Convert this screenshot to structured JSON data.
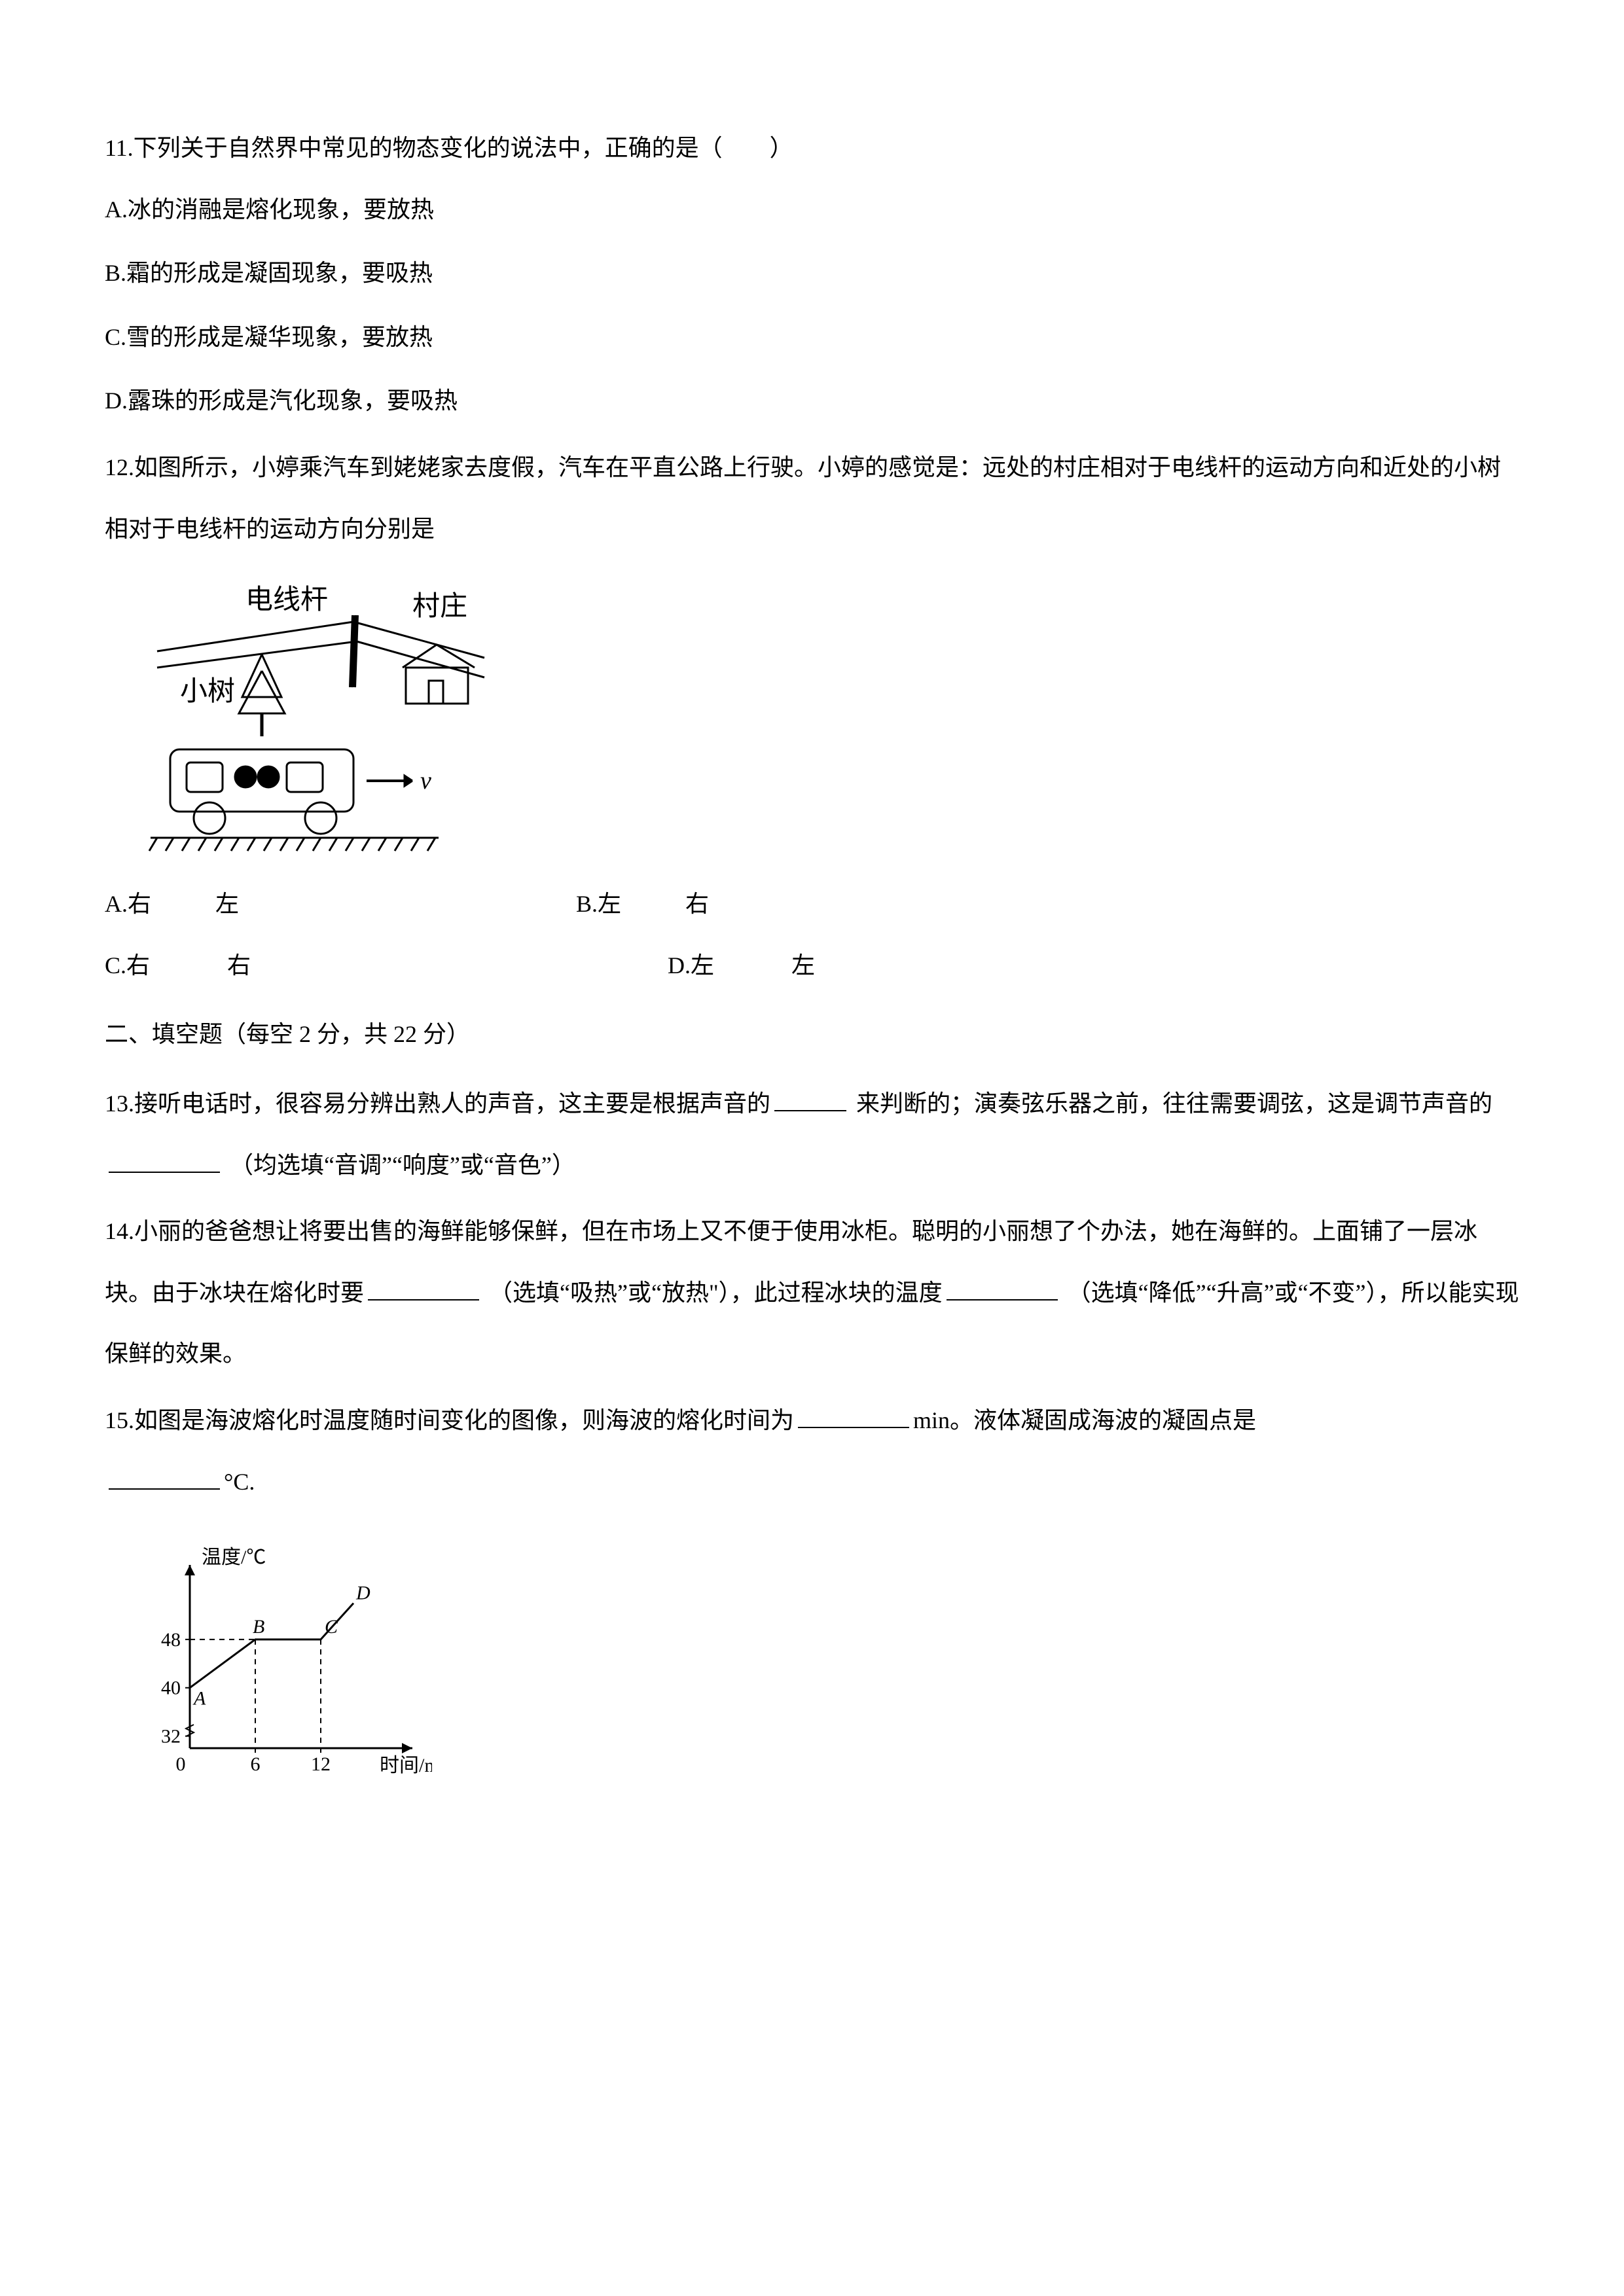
{
  "q11": {
    "stem": "11.下列关于自然界中常见的物态变化的说法中，正确的是（　　）",
    "optA": "A.冰的消融是熔化现象，要放热",
    "optB": "B.霜的形成是凝固现象，要吸热",
    "optC": "C.雪的形成是凝华现象，要放热",
    "optD": "D.露珠的形成是汽化现象，要吸热"
  },
  "q12": {
    "stem": "12.如图所示，小婷乘汽车到姥姥家去度假，汽车在平直公路上行驶。小婷的感觉是：远处的村庄相对于电线杆的运动方向和近处的小树相对于电线杆的运动方向分别是",
    "figure": {
      "labels": {
        "pole": "电线杆",
        "village": "村庄",
        "tree": "小树",
        "velocity": "v"
      },
      "stroke": "#000000",
      "bg": "#ffffff"
    },
    "optA_pre": "A.右",
    "optA_post": "左",
    "optB_pre": "B.左",
    "optB_post": "右",
    "optC_pre": "C.右",
    "optC_post": "右",
    "optD_pre": "D.左",
    "optD_post": "左"
  },
  "section2": "二、填空题（每空 2 分，共 22 分）",
  "q13": {
    "part1": "13.接听电话时，很容易分辨出熟人的声音，这主要是根据声音的",
    "part2": " 来判断的；演奏弦乐器之前，往往需要调弦，这是调节声音的",
    "part3": " （均选填“音调”“响度”或“音色”）"
  },
  "q14": {
    "part1": "14.小丽的爸爸想让将要出售的海鲜能够保鲜，但在市场上又不便于使用冰柜。聪明的小丽想了个办法，她在海鲜的。上面铺了一层冰块。由于冰块在熔化时要",
    "part2": " （选填“吸热”或“放热\"），此过程冰块的温度",
    "part3": " （选填“降低”“升高”或“不变”），所以能实现保鲜的效果。"
  },
  "q15": {
    "part1": "15.如图是海波熔化时温度随时间变化的图像，则海波的熔化时间为",
    "part2": "min。液体凝固成海波的凝固点是",
    "part3": "°C.",
    "chart": {
      "type": "line",
      "ylabel": "温度/℃",
      "xlabel": "时间/min",
      "y_ticks": [
        32,
        40,
        48
      ],
      "x_ticks": [
        0,
        6,
        12
      ],
      "points": {
        "A": [
          0,
          40
        ],
        "B": [
          6,
          48
        ],
        "C": [
          12,
          48
        ],
        "D": [
          15,
          54
        ]
      },
      "point_labels": [
        "A",
        "B",
        "C",
        "D"
      ],
      "line_color": "#000000",
      "axis_color": "#000000",
      "dash_color": "#000000",
      "bg": "#ffffff",
      "font_size": 30
    }
  }
}
